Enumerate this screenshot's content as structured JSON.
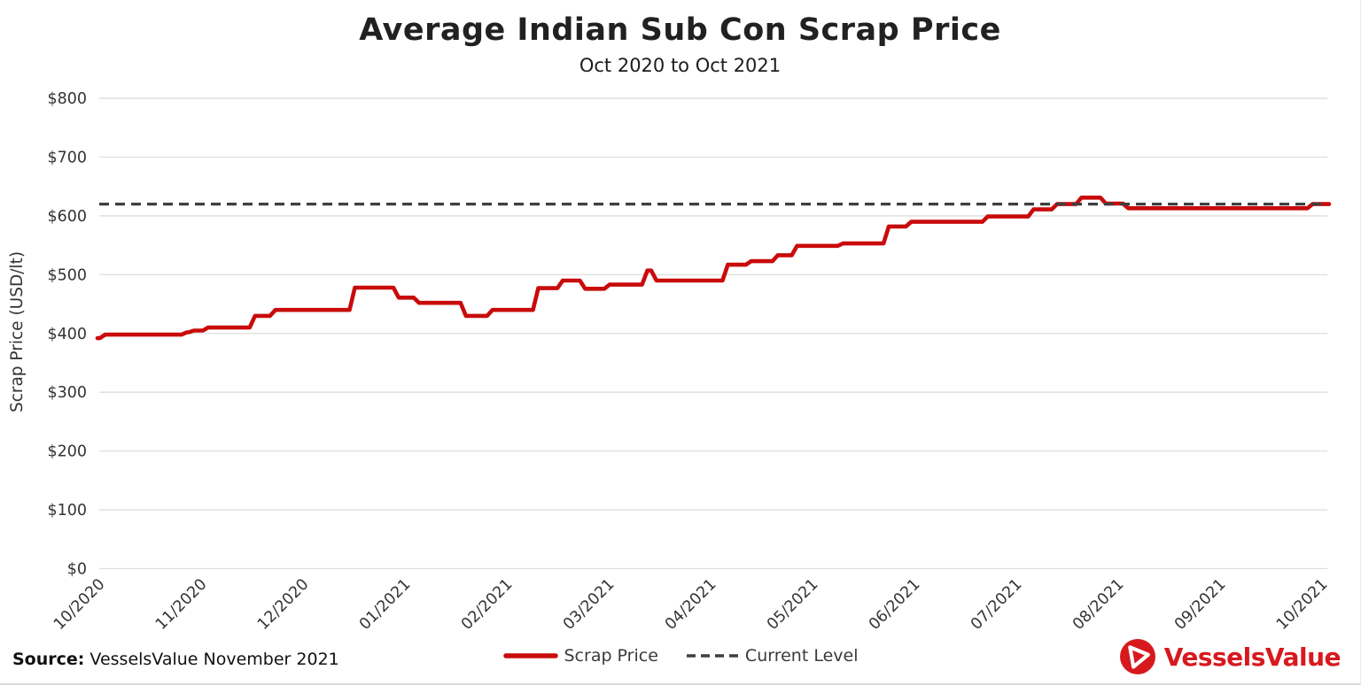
{
  "chart_data": {
    "type": "line",
    "title": "Average Indian Sub Con Scrap Price",
    "subtitle": "Oct 2020 to Oct 2021",
    "ylabel": "Scrap Price (USD/lt)",
    "ylim": [
      0,
      800
    ],
    "ytick_step": 100,
    "ytick_labels": [
      "$0",
      "$100",
      "$200",
      "$300",
      "$400",
      "$500",
      "$600",
      "$700",
      "$800"
    ],
    "xtick_labels": [
      "10/2020",
      "11/2020",
      "12/2020",
      "01/2021",
      "02/2021",
      "03/2021",
      "04/2021",
      "05/2021",
      "06/2021",
      "07/2021",
      "08/2021",
      "09/2021",
      "10/2021"
    ],
    "x_unit": "months since Oct 2020",
    "grid": "horizontal",
    "legend_position": "bottom-center",
    "series": [
      {
        "name": "Scrap Price",
        "color": "#C90B0B",
        "style": "solid",
        "points": [
          {
            "x": 0.0,
            "y": 392
          },
          {
            "x": 0.05,
            "y": 398
          },
          {
            "x": 0.85,
            "y": 402
          },
          {
            "x": 0.92,
            "y": 405
          },
          {
            "x": 1.06,
            "y": 410
          },
          {
            "x": 1.52,
            "y": 430
          },
          {
            "x": 1.72,
            "y": 440
          },
          {
            "x": 2.5,
            "y": 478
          },
          {
            "x": 2.93,
            "y": 461
          },
          {
            "x": 3.13,
            "y": 452
          },
          {
            "x": 3.59,
            "y": 430
          },
          {
            "x": 3.85,
            "y": 440
          },
          {
            "x": 4.3,
            "y": 477
          },
          {
            "x": 4.54,
            "y": 490
          },
          {
            "x": 4.76,
            "y": 476
          },
          {
            "x": 5.0,
            "y": 483
          },
          {
            "x": 5.37,
            "y": 507
          },
          {
            "x": 5.46,
            "y": 490
          },
          {
            "x": 6.16,
            "y": 517
          },
          {
            "x": 6.39,
            "y": 523
          },
          {
            "x": 6.65,
            "y": 533
          },
          {
            "x": 6.84,
            "y": 549
          },
          {
            "x": 7.29,
            "y": 553
          },
          {
            "x": 7.74,
            "y": 582
          },
          {
            "x": 7.96,
            "y": 590
          },
          {
            "x": 8.71,
            "y": 599
          },
          {
            "x": 9.16,
            "y": 611
          },
          {
            "x": 9.39,
            "y": 620
          },
          {
            "x": 9.63,
            "y": 631
          },
          {
            "x": 9.87,
            "y": 621
          },
          {
            "x": 10.09,
            "y": 613
          },
          {
            "x": 11.9,
            "y": 620
          },
          {
            "x": 12.06,
            "y": 620
          }
        ]
      },
      {
        "name": "Current Level",
        "color": "#3F3F3F",
        "style": "dashed",
        "value": 620
      }
    ]
  },
  "footer": {
    "source_label": "Source:",
    "source_text": " VesselsValue November 2021",
    "brand": "VesselsValue"
  },
  "colors": {
    "logo_red": "#D7191E",
    "grid": "#DEDEDE"
  }
}
